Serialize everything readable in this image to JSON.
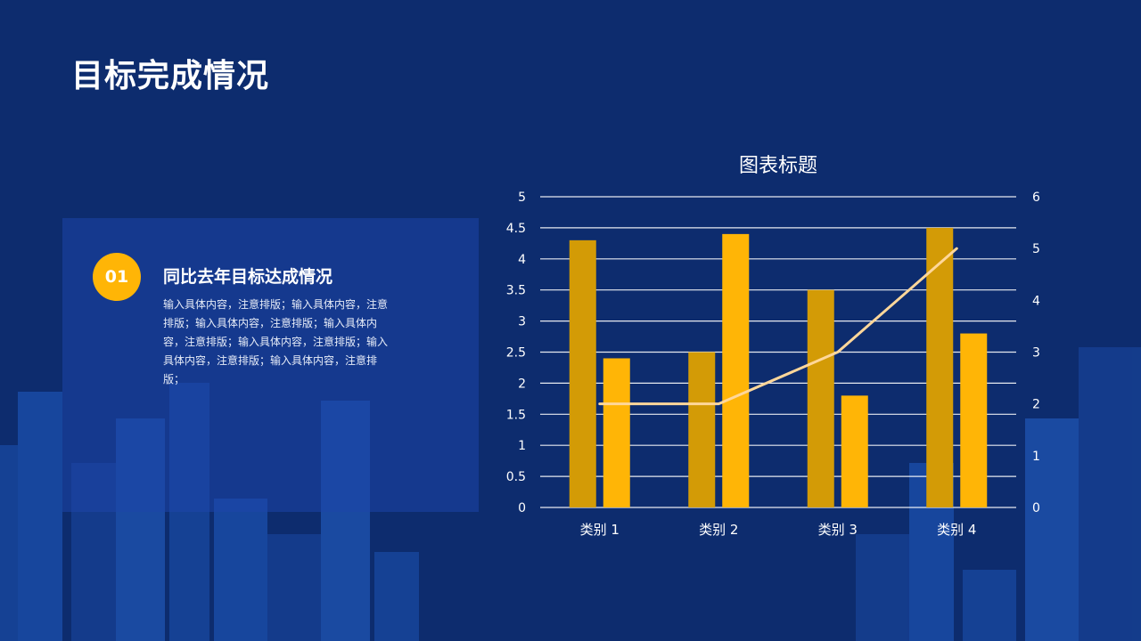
{
  "page": {
    "title": "目标完成情况"
  },
  "card": {
    "number": "01",
    "heading": "同比去年目标达成情况",
    "body": "输入具体内容，注意排版；输入具体内容，注意排版；输入具体内容，注意排版；输入具体内容，注意排版；输入具体内容，注意排版；输入具体内容，注意排版；输入具体内容，注意排版；"
  },
  "colors": {
    "background": "#0d2c6e",
    "series1": "#d39b06",
    "series2": "#ffb506",
    "line": "#ffd79a",
    "grid": "#ffffff",
    "badge": "#ffb506"
  },
  "chart_data": {
    "type": "bar",
    "title": "图表标题",
    "categories": [
      "类别 1",
      "类别 2",
      "类别 3",
      "类别 4"
    ],
    "series": [
      {
        "type": "bar",
        "axis": "left",
        "values": [
          4.3,
          2.5,
          3.5,
          4.5
        ]
      },
      {
        "type": "bar",
        "axis": "left",
        "values": [
          2.4,
          4.4,
          1.8,
          2.8
        ]
      },
      {
        "type": "line",
        "axis": "right",
        "values": [
          2,
          2,
          3,
          5
        ]
      }
    ],
    "y_left": {
      "min": 0,
      "max": 5,
      "ticks": [
        "0",
        "0.5",
        "1",
        "1.5",
        "2",
        "2.5",
        "3",
        "3.5",
        "4",
        "4.5",
        "5"
      ]
    },
    "y_right": {
      "min": 0,
      "max": 6,
      "ticks": [
        "0",
        "1",
        "2",
        "3",
        "4",
        "5",
        "6"
      ]
    },
    "grid": true,
    "legend": "none"
  }
}
